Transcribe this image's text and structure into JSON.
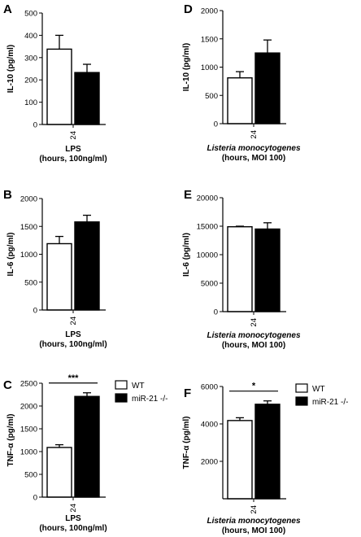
{
  "chart_data": [
    {
      "panel": "A",
      "type": "bar",
      "ylabel": "IL-10 (pg/ml)",
      "ylim": [
        0,
        500
      ],
      "yticks": [
        0,
        100,
        200,
        300,
        400,
        500
      ],
      "categories": [
        "24"
      ],
      "xlabel_lines": [
        "LPS",
        "(hours, 100ng/ml)"
      ],
      "xlabel_italic": false,
      "series": [
        {
          "name": "WT",
          "fill": "#ffffff",
          "values": [
            338
          ],
          "errors": [
            62
          ]
        },
        {
          "name": "miR-21 -/-",
          "fill": "#000000",
          "values": [
            233
          ],
          "errors": [
            37
          ]
        }
      ],
      "significance": "",
      "legend": false
    },
    {
      "panel": "B",
      "type": "bar",
      "ylabel": "IL-6 (pg/ml)",
      "ylim": [
        0,
        2000
      ],
      "yticks": [
        0,
        500,
        1000,
        1500,
        2000
      ],
      "categories": [
        "24"
      ],
      "xlabel_lines": [
        "LPS",
        "(hours, 100ng/ml)"
      ],
      "xlabel_italic": false,
      "series": [
        {
          "name": "WT",
          "fill": "#ffffff",
          "values": [
            1190
          ],
          "errors": [
            130
          ]
        },
        {
          "name": "miR-21 -/-",
          "fill": "#000000",
          "values": [
            1580
          ],
          "errors": [
            120
          ]
        }
      ],
      "significance": "",
      "legend": false
    },
    {
      "panel": "C",
      "type": "bar",
      "ylabel": "TNF-α (pg/ml)",
      "ylim": [
        0,
        2500
      ],
      "yticks": [
        0,
        500,
        1000,
        1500,
        2000,
        2500
      ],
      "categories": [
        "24"
      ],
      "xlabel_lines": [
        "LPS",
        "(hours, 100ng/ml)"
      ],
      "xlabel_italic": false,
      "series": [
        {
          "name": "WT",
          "fill": "#ffffff",
          "values": [
            1090
          ],
          "errors": [
            60
          ]
        },
        {
          "name": "miR-21 -/-",
          "fill": "#000000",
          "values": [
            2210
          ],
          "errors": [
            80
          ]
        }
      ],
      "significance": "***",
      "legend": true
    },
    {
      "panel": "D",
      "type": "bar",
      "ylabel": "IL-10 (pg/ml)",
      "ylim": [
        0,
        2000
      ],
      "yticks": [
        0,
        500,
        1000,
        1500,
        2000
      ],
      "categories": [
        "24"
      ],
      "xlabel_lines": [
        "Listeria monocytogenes",
        "(hours, MOI 100)"
      ],
      "xlabel_italic": true,
      "series": [
        {
          "name": "WT",
          "fill": "#ffffff",
          "values": [
            810
          ],
          "errors": [
            110
          ]
        },
        {
          "name": "miR-21 -/-",
          "fill": "#000000",
          "values": [
            1250
          ],
          "errors": [
            230
          ]
        }
      ],
      "significance": "",
      "legend": false
    },
    {
      "panel": "E",
      "type": "bar",
      "ylabel": "IL-6 (pg/ml)",
      "ylim": [
        0,
        20000
      ],
      "yticks": [
        0,
        5000,
        10000,
        15000,
        20000
      ],
      "categories": [
        "24"
      ],
      "xlabel_lines": [
        "Listeria monocytogenes",
        "(hours, MOI 100)"
      ],
      "xlabel_italic": true,
      "series": [
        {
          "name": "WT",
          "fill": "#ffffff",
          "values": [
            14900
          ],
          "errors": [
            100
          ]
        },
        {
          "name": "miR-21 -/-",
          "fill": "#000000",
          "values": [
            14500
          ],
          "errors": [
            1100
          ]
        }
      ],
      "significance": "",
      "legend": false
    },
    {
      "panel": "F",
      "type": "bar",
      "ylabel": "TNF-α (pg/ml)",
      "ylim": [
        0,
        6000
      ],
      "yticks": [
        2000,
        4000,
        6000
      ],
      "categories": [
        "24"
      ],
      "xlabel_lines": [
        "Listeria monocytogenes",
        "(hours, MOI 100)"
      ],
      "xlabel_italic": true,
      "series": [
        {
          "name": "WT",
          "fill": "#ffffff",
          "values": [
            4180
          ],
          "errors": [
            150
          ]
        },
        {
          "name": "miR-21 -/-",
          "fill": "#000000",
          "values": [
            5050
          ],
          "errors": [
            180
          ]
        }
      ],
      "significance": "*",
      "legend": true
    }
  ]
}
